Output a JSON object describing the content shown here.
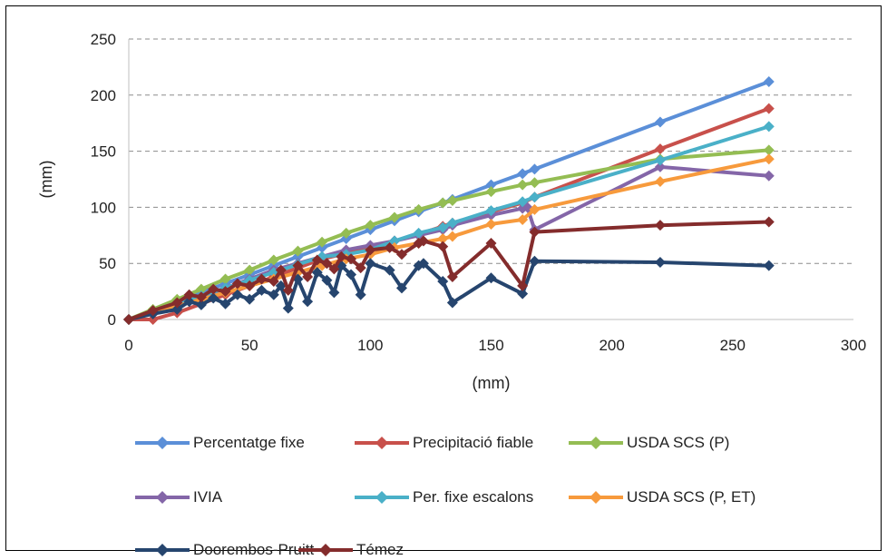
{
  "chart_data": {
    "type": "line",
    "title": "",
    "xlabel": "(mm)",
    "ylabel": "(mm)",
    "xlim": [
      0,
      300
    ],
    "ylim": [
      0,
      250
    ],
    "xticks": [
      0,
      50,
      100,
      150,
      200,
      250,
      300
    ],
    "yticks": [
      0,
      50,
      100,
      150,
      200,
      250
    ],
    "grid": "horizontal dashed",
    "legend_position": "bottom",
    "series": [
      {
        "name": "Percentatge fixe",
        "color": "#5b8fd8",
        "points": [
          [
            0,
            0
          ],
          [
            10,
            8
          ],
          [
            20,
            16
          ],
          [
            30,
            24
          ],
          [
            40,
            32
          ],
          [
            50,
            40
          ],
          [
            60,
            48
          ],
          [
            70,
            56
          ],
          [
            80,
            64
          ],
          [
            90,
            72
          ],
          [
            100,
            80
          ],
          [
            110,
            88
          ],
          [
            120,
            96
          ],
          [
            130,
            104
          ],
          [
            134,
            107
          ],
          [
            150,
            120
          ],
          [
            163,
            130
          ],
          [
            168,
            134
          ],
          [
            220,
            176
          ],
          [
            265,
            212
          ]
        ]
      },
      {
        "name": "Precipitació fiable",
        "color": "#c8504b",
        "points": [
          [
            0,
            0
          ],
          [
            10,
            0
          ],
          [
            20,
            6
          ],
          [
            30,
            14
          ],
          [
            40,
            22
          ],
          [
            50,
            30
          ],
          [
            60,
            38
          ],
          [
            70,
            46
          ],
          [
            80,
            54
          ],
          [
            90,
            59
          ],
          [
            100,
            64
          ],
          [
            110,
            70
          ],
          [
            120,
            76
          ],
          [
            130,
            83
          ],
          [
            134,
            86
          ],
          [
            150,
            96
          ],
          [
            163,
            104
          ],
          [
            168,
            109
          ],
          [
            220,
            152
          ],
          [
            265,
            188
          ]
        ]
      },
      {
        "name": "USDA SCS (P)",
        "color": "#94bd53",
        "points": [
          [
            0,
            0
          ],
          [
            10,
            9
          ],
          [
            20,
            18
          ],
          [
            30,
            27
          ],
          [
            40,
            36
          ],
          [
            50,
            44
          ],
          [
            60,
            53
          ],
          [
            70,
            61
          ],
          [
            80,
            69
          ],
          [
            90,
            77
          ],
          [
            100,
            84
          ],
          [
            110,
            91
          ],
          [
            120,
            98
          ],
          [
            130,
            104
          ],
          [
            134,
            106
          ],
          [
            150,
            114
          ],
          [
            163,
            120
          ],
          [
            168,
            122
          ],
          [
            220,
            143
          ],
          [
            265,
            151
          ]
        ]
      },
      {
        "name": "IVIA",
        "color": "#8466a8",
        "points": [
          [
            0,
            0
          ],
          [
            10,
            6
          ],
          [
            20,
            12
          ],
          [
            30,
            20
          ],
          [
            40,
            28
          ],
          [
            50,
            36
          ],
          [
            60,
            44
          ],
          [
            70,
            50
          ],
          [
            80,
            56
          ],
          [
            90,
            62
          ],
          [
            100,
            66
          ],
          [
            110,
            70
          ],
          [
            120,
            75
          ],
          [
            130,
            80
          ],
          [
            134,
            84
          ],
          [
            150,
            93
          ],
          [
            163,
            99
          ],
          [
            165,
            100
          ],
          [
            168,
            80
          ],
          [
            220,
            136
          ],
          [
            265,
            128
          ]
        ]
      },
      {
        "name": "Per. fixe escalons",
        "color": "#4ab0c8",
        "points": [
          [
            0,
            0
          ],
          [
            10,
            7
          ],
          [
            20,
            14
          ],
          [
            30,
            21
          ],
          [
            40,
            28
          ],
          [
            50,
            35
          ],
          [
            60,
            42
          ],
          [
            70,
            49
          ],
          [
            80,
            56
          ],
          [
            90,
            58
          ],
          [
            100,
            62
          ],
          [
            110,
            70
          ],
          [
            120,
            77
          ],
          [
            130,
            82
          ],
          [
            134,
            86
          ],
          [
            150,
            97
          ],
          [
            163,
            105
          ],
          [
            168,
            109
          ],
          [
            220,
            142
          ],
          [
            265,
            172
          ]
        ]
      },
      {
        "name": "USDA SCS (P, ET)",
        "color": "#f79a3c",
        "points": [
          [
            0,
            0
          ],
          [
            10,
            6
          ],
          [
            20,
            12
          ],
          [
            30,
            18
          ],
          [
            40,
            24
          ],
          [
            50,
            30
          ],
          [
            60,
            36
          ],
          [
            70,
            42
          ],
          [
            80,
            48
          ],
          [
            90,
            54
          ],
          [
            100,
            58
          ],
          [
            110,
            64
          ],
          [
            120,
            68
          ],
          [
            130,
            72
          ],
          [
            134,
            74
          ],
          [
            150,
            85
          ],
          [
            163,
            89
          ],
          [
            168,
            98
          ],
          [
            220,
            123
          ],
          [
            265,
            143
          ]
        ]
      },
      {
        "name": "Doorembos-Pruitt",
        "color": "#26456e",
        "points": [
          [
            0,
            0
          ],
          [
            10,
            5
          ],
          [
            20,
            9
          ],
          [
            25,
            16
          ],
          [
            30,
            13
          ],
          [
            35,
            19
          ],
          [
            40,
            14
          ],
          [
            45,
            22
          ],
          [
            50,
            18
          ],
          [
            55,
            26
          ],
          [
            60,
            22
          ],
          [
            63,
            30
          ],
          [
            66,
            10
          ],
          [
            70,
            36
          ],
          [
            74,
            16
          ],
          [
            78,
            42
          ],
          [
            82,
            35
          ],
          [
            85,
            24
          ],
          [
            88,
            48
          ],
          [
            92,
            40
          ],
          [
            96,
            22
          ],
          [
            100,
            50
          ],
          [
            108,
            44
          ],
          [
            113,
            28
          ],
          [
            120,
            48
          ],
          [
            122,
            50
          ],
          [
            130,
            34
          ],
          [
            134,
            15
          ],
          [
            150,
            37
          ],
          [
            163,
            23
          ],
          [
            168,
            52
          ],
          [
            220,
            51
          ],
          [
            265,
            48
          ]
        ]
      },
      {
        "name": "Témez",
        "color": "#842c2c",
        "points": [
          [
            0,
            0
          ],
          [
            10,
            8
          ],
          [
            20,
            15
          ],
          [
            25,
            22
          ],
          [
            30,
            20
          ],
          [
            35,
            27
          ],
          [
            40,
            25
          ],
          [
            45,
            32
          ],
          [
            50,
            30
          ],
          [
            55,
            36
          ],
          [
            60,
            34
          ],
          [
            63,
            44
          ],
          [
            66,
            26
          ],
          [
            70,
            48
          ],
          [
            74,
            38
          ],
          [
            78,
            53
          ],
          [
            82,
            50
          ],
          [
            85,
            45
          ],
          [
            88,
            56
          ],
          [
            92,
            54
          ],
          [
            96,
            46
          ],
          [
            100,
            62
          ],
          [
            108,
            64
          ],
          [
            113,
            58
          ],
          [
            120,
            68
          ],
          [
            122,
            70
          ],
          [
            130,
            65
          ],
          [
            134,
            38
          ],
          [
            150,
            68
          ],
          [
            163,
            30
          ],
          [
            168,
            78
          ],
          [
            220,
            84
          ],
          [
            265,
            87
          ]
        ]
      }
    ]
  }
}
